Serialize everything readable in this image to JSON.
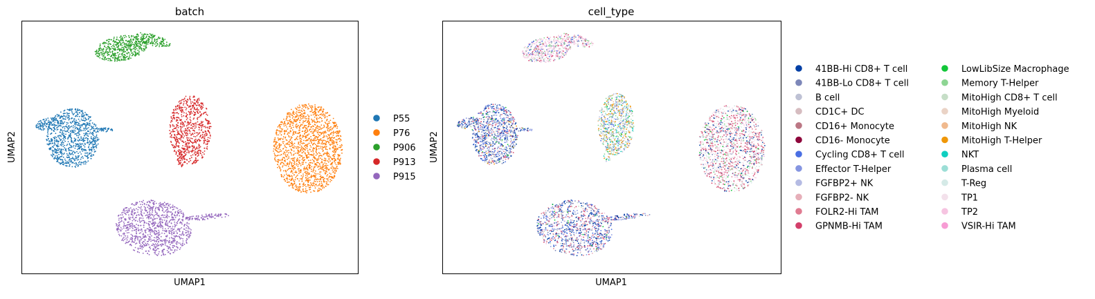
{
  "chart_data": [
    {
      "type": "scatter",
      "title": "batch",
      "xlabel": "UMAP1",
      "ylabel": "UMAP2",
      "grid": false,
      "legend_placement": "right",
      "series": [
        {
          "name": "P55",
          "color": "#1f77b4"
        },
        {
          "name": "P76",
          "color": "#ff7f0e"
        },
        {
          "name": "P906",
          "color": "#2ca02c"
        },
        {
          "name": "P913",
          "color": "#d62728"
        },
        {
          "name": "P915",
          "color": "#9467bd"
        }
      ]
    },
    {
      "type": "scatter",
      "title": "cell_type",
      "xlabel": "UMAP1",
      "ylabel": "UMAP2",
      "grid": false,
      "legend_placement": "right",
      "series": [
        {
          "name": "41BB-Hi CD8+ T cell",
          "color": "#023fa5"
        },
        {
          "name": "41BB-Lo CD8+ T cell",
          "color": "#7d87b9"
        },
        {
          "name": "B cell",
          "color": "#bec1d4"
        },
        {
          "name": "CD1C+ DC",
          "color": "#d6bcc0"
        },
        {
          "name": "CD16+ Monocyte",
          "color": "#bb7784"
        },
        {
          "name": "CD16- Monocyte",
          "color": "#8e063b"
        },
        {
          "name": "Cycling CD8+ T cell",
          "color": "#4a6fe3"
        },
        {
          "name": "Effector T-Helper",
          "color": "#8595e1"
        },
        {
          "name": "FGFBP2+ NK",
          "color": "#b5bbe3"
        },
        {
          "name": "FGFBP2- NK",
          "color": "#e6afb9"
        },
        {
          "name": "FOLR2-Hi TAM",
          "color": "#e07b91"
        },
        {
          "name": "GPNMB-Hi TAM",
          "color": "#d33f6a"
        },
        {
          "name": "LowLibSize Macrophage",
          "color": "#11c638"
        },
        {
          "name": "Memory T-Helper",
          "color": "#8dd593"
        },
        {
          "name": "MitoHigh CD8+ T cell",
          "color": "#c6dec7"
        },
        {
          "name": "MitoHigh Myeloid",
          "color": "#ead3c6"
        },
        {
          "name": "MitoHigh NK",
          "color": "#f0b98d"
        },
        {
          "name": "MitoHigh T-Helper",
          "color": "#ef9708"
        },
        {
          "name": "NKT",
          "color": "#0fcfc0"
        },
        {
          "name": "Plasma cell",
          "color": "#9cded6"
        },
        {
          "name": "T-Reg",
          "color": "#d5eae7"
        },
        {
          "name": "TP1",
          "color": "#f3e1eb"
        },
        {
          "name": "TP2",
          "color": "#f6c4e1"
        },
        {
          "name": "VSIR-Hi TAM",
          "color": "#f79cd4"
        }
      ]
    }
  ]
}
